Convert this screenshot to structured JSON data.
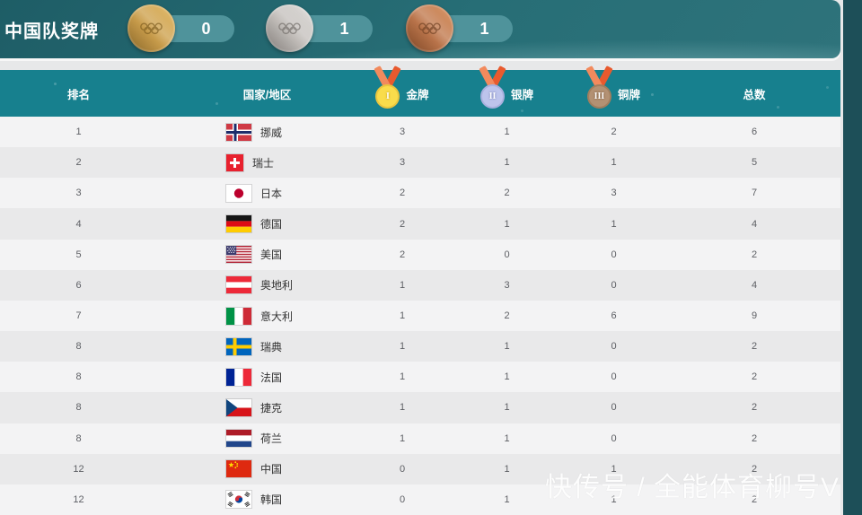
{
  "banner": {
    "title": "中国队奖牌",
    "medals": [
      {
        "name": "gold",
        "count": "0"
      },
      {
        "name": "silver",
        "count": "1"
      },
      {
        "name": "bronze",
        "count": "1"
      }
    ]
  },
  "table": {
    "columns": {
      "rank": "排名",
      "country": "国家/地区",
      "gold": "金牌",
      "silver": "银牌",
      "bronze": "铜牌",
      "total": "总数"
    },
    "header_icons": {
      "gold": "I",
      "silver": "II",
      "bronze": "III"
    },
    "rows": [
      {
        "rank": "1",
        "flag": "norway",
        "country": "挪威",
        "gold": "3",
        "silver": "1",
        "bronze": "2",
        "total": "6"
      },
      {
        "rank": "2",
        "flag": "switzerland",
        "country": "瑞士",
        "gold": "3",
        "silver": "1",
        "bronze": "1",
        "total": "5"
      },
      {
        "rank": "3",
        "flag": "japan",
        "country": "日本",
        "gold": "2",
        "silver": "2",
        "bronze": "3",
        "total": "7"
      },
      {
        "rank": "4",
        "flag": "germany",
        "country": "德国",
        "gold": "2",
        "silver": "1",
        "bronze": "1",
        "total": "4"
      },
      {
        "rank": "5",
        "flag": "usa",
        "country": "美国",
        "gold": "2",
        "silver": "0",
        "bronze": "0",
        "total": "2"
      },
      {
        "rank": "6",
        "flag": "austria",
        "country": "奥地利",
        "gold": "1",
        "silver": "3",
        "bronze": "0",
        "total": "4"
      },
      {
        "rank": "7",
        "flag": "italy",
        "country": "意大利",
        "gold": "1",
        "silver": "2",
        "bronze": "6",
        "total": "9"
      },
      {
        "rank": "8",
        "flag": "sweden",
        "country": "瑞典",
        "gold": "1",
        "silver": "1",
        "bronze": "0",
        "total": "2"
      },
      {
        "rank": "8",
        "flag": "france",
        "country": "法国",
        "gold": "1",
        "silver": "1",
        "bronze": "0",
        "total": "2"
      },
      {
        "rank": "8",
        "flag": "czech",
        "country": "捷克",
        "gold": "1",
        "silver": "1",
        "bronze": "0",
        "total": "2"
      },
      {
        "rank": "8",
        "flag": "netherlands",
        "country": "荷兰",
        "gold": "1",
        "silver": "1",
        "bronze": "0",
        "total": "2"
      },
      {
        "rank": "12",
        "flag": "china",
        "country": "中国",
        "gold": "0",
        "silver": "1",
        "bronze": "1",
        "total": "2"
      },
      {
        "rank": "12",
        "flag": "south-korea",
        "country": "韩国",
        "gold": "0",
        "silver": "1",
        "bronze": "1",
        "total": "2"
      }
    ]
  },
  "watermark": "快传号 / 全能体育柳号V",
  "colors": {
    "banner_teal": "#276e76",
    "header_teal": "#17808e",
    "side_strip": "#1d4f58",
    "pill_teal": "#4f939b",
    "ribbon_orange": "#e85a2e",
    "row_light": "#f3f3f4",
    "row_dark": "#e9e9ea",
    "gold": "#cda14f",
    "silver": "#c2beba",
    "bronze": "#c07a50"
  }
}
